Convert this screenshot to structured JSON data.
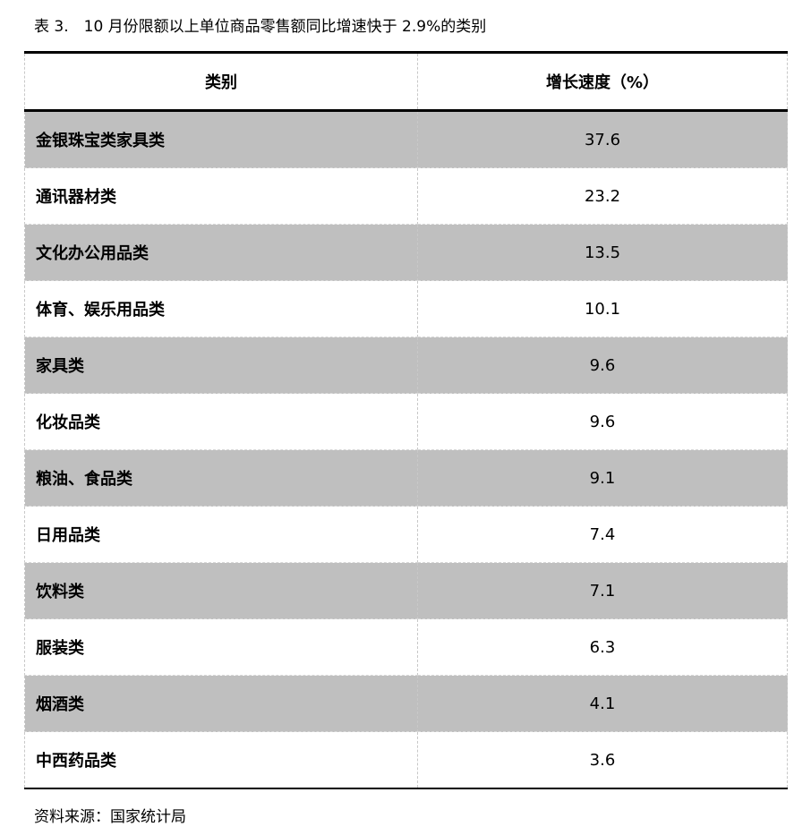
{
  "title": "表 3.　10 月份限额以上单位商品零售额同比增速快于 2.9%的类别",
  "table": {
    "headers": [
      "类别",
      "增长速度（%）"
    ],
    "rows": [
      {
        "category": "金银珠宝类家具类",
        "value": "37.6"
      },
      {
        "category": "通讯器材类",
        "value": "23.2"
      },
      {
        "category": "文化办公用品类",
        "value": "13.5"
      },
      {
        "category": "体育、娱乐用品类",
        "value": "10.1"
      },
      {
        "category": "家具类",
        "value": "9.6"
      },
      {
        "category": "化妆品类",
        "value": "9.6"
      },
      {
        "category": "粮油、食品类",
        "value": "9.1"
      },
      {
        "category": "日用品类",
        "value": "7.4"
      },
      {
        "category": "饮料类",
        "value": "7.1"
      },
      {
        "category": "服装类",
        "value": "6.3"
      },
      {
        "category": "烟酒类",
        "value": "4.1"
      },
      {
        "category": "中西药品类",
        "value": "3.6"
      }
    ]
  },
  "source": "资料来源：国家统计局",
  "colors": {
    "shaded_row": "#bfbfbf"
  }
}
